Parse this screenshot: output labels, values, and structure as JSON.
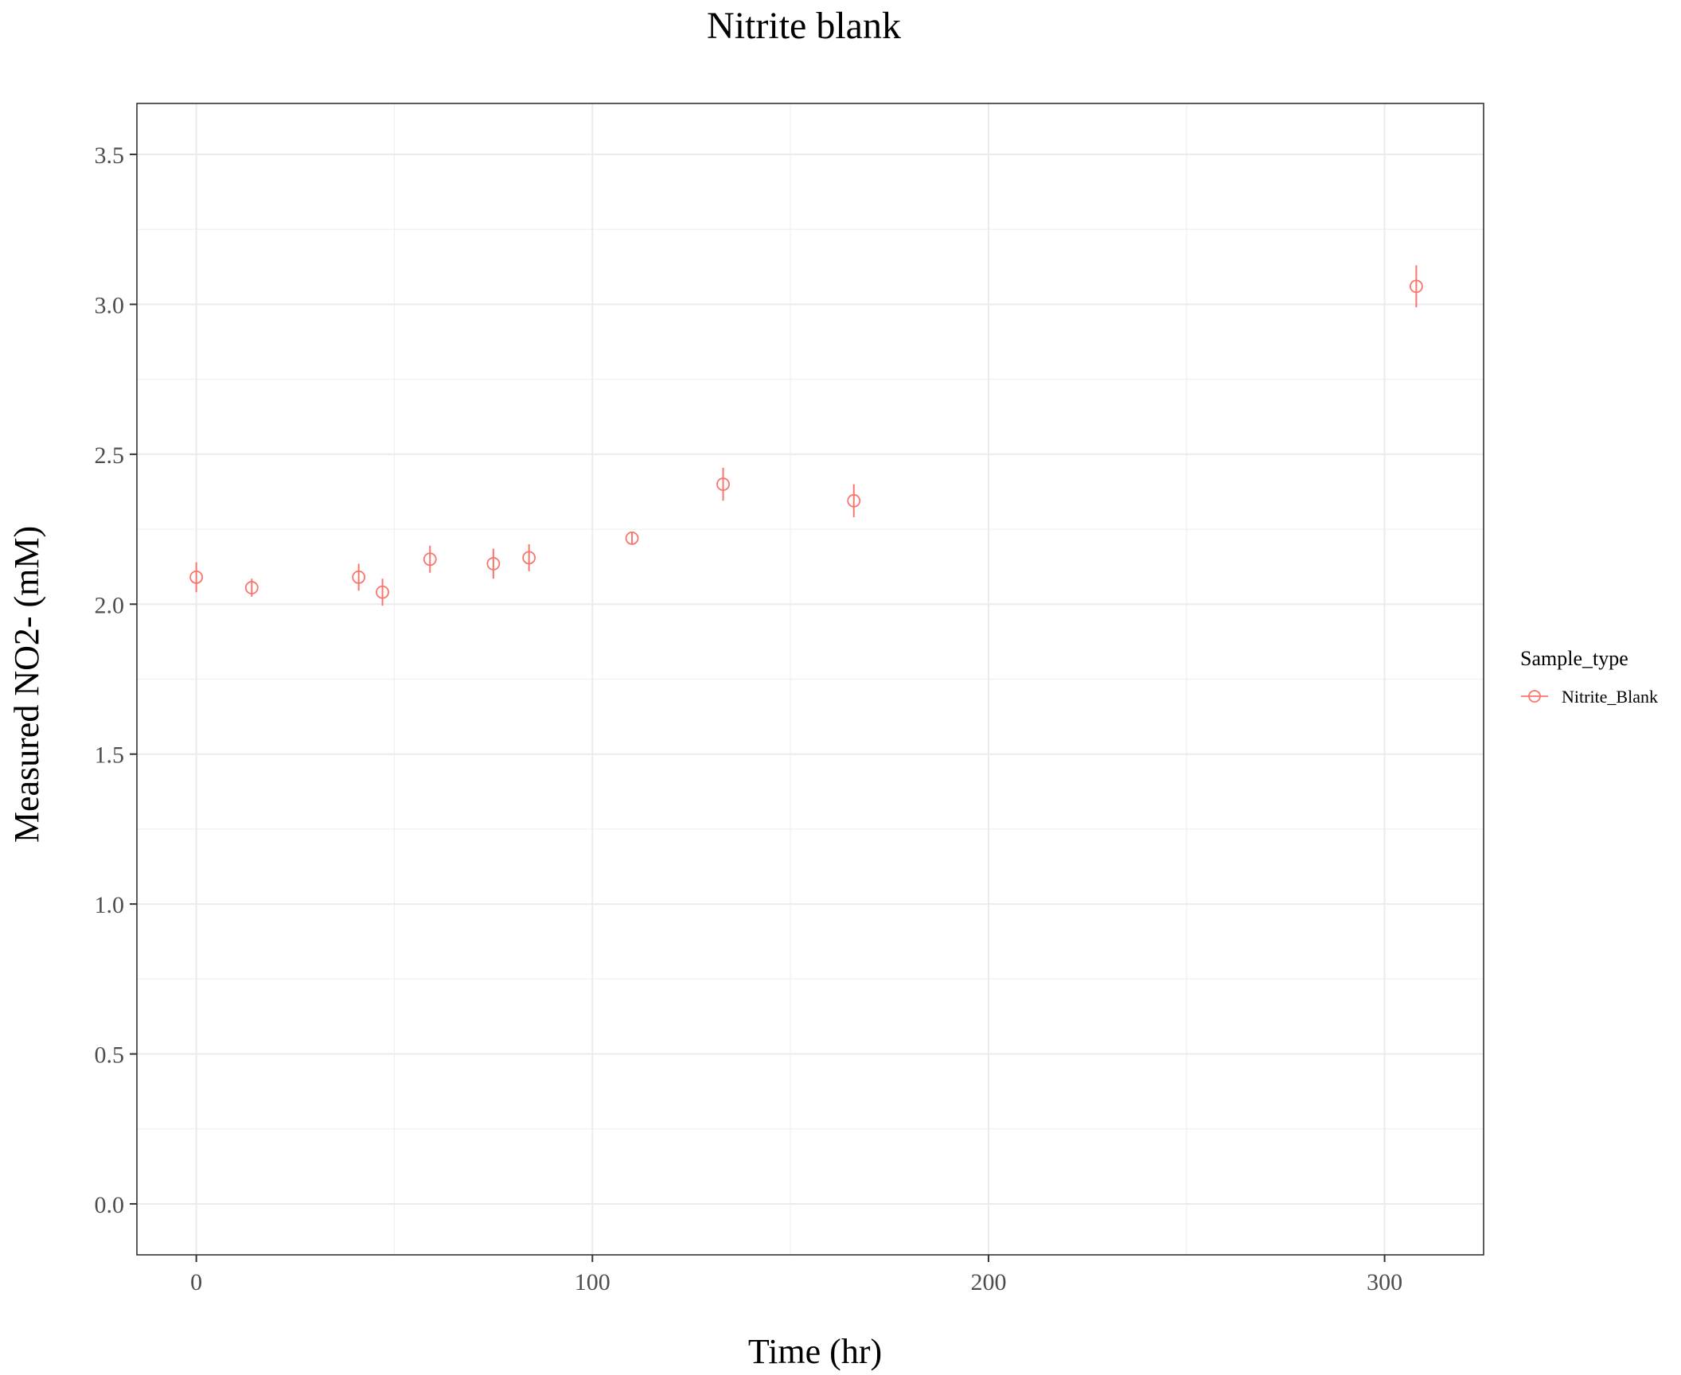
{
  "chart_data": {
    "type": "scatter",
    "title": "Nitrite blank",
    "xlabel": "Time (hr)",
    "ylabel": "Measured NO2- (mM)",
    "xlim": [
      -15,
      325
    ],
    "ylim": [
      -0.17,
      3.67
    ],
    "x_ticks": [
      0,
      100,
      200,
      300
    ],
    "x_tick_labels": [
      "0",
      "100",
      "200",
      "300"
    ],
    "y_ticks": [
      0.0,
      0.5,
      1.0,
      1.5,
      2.0,
      2.5,
      3.0,
      3.5
    ],
    "y_tick_labels": [
      "0.0",
      "0.5",
      "1.0",
      "1.5",
      "2.0",
      "2.5",
      "3.0",
      "3.5"
    ],
    "grid": true,
    "legend": {
      "title": "Sample_type",
      "position": "right",
      "entries": [
        "Nitrite_Blank"
      ]
    },
    "series": [
      {
        "name": "Nitrite_Blank",
        "color": "#F8766D",
        "points": [
          {
            "x": 0,
            "y": 2.09,
            "err": 0.05
          },
          {
            "x": 14,
            "y": 2.055,
            "err": 0.03
          },
          {
            "x": 41,
            "y": 2.09,
            "err": 0.045
          },
          {
            "x": 47,
            "y": 2.04,
            "err": 0.045
          },
          {
            "x": 59,
            "y": 2.15,
            "err": 0.045
          },
          {
            "x": 75,
            "y": 2.135,
            "err": 0.05
          },
          {
            "x": 84,
            "y": 2.155,
            "err": 0.045
          },
          {
            "x": 110,
            "y": 2.22,
            "err": 0.02
          },
          {
            "x": 133,
            "y": 2.4,
            "err": 0.055
          },
          {
            "x": 166,
            "y": 2.345,
            "err": 0.055
          },
          {
            "x": 308,
            "y": 3.06,
            "err": 0.07
          }
        ]
      }
    ]
  }
}
